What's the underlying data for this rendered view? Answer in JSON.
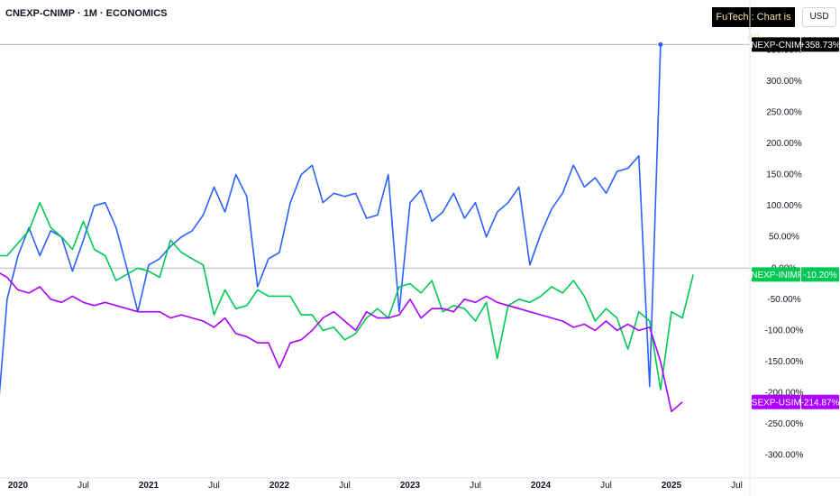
{
  "header": {
    "title": "CNEXP-CNIMP · 1M · ECONOMICS",
    "brand": "FuTech : Chart is Art",
    "currency": "USD"
  },
  "chart_data": {
    "type": "line",
    "y_unit": "%",
    "ylim": [
      -315,
      365
    ],
    "y_ticks": [
      "350.00%",
      "300.00%",
      "250.00%",
      "200.00%",
      "150.00%",
      "100.00%",
      "50.00%",
      "0.00%",
      "-50.00%",
      "-100.00%",
      "-150.00%",
      "-200.00%",
      "-250.00%",
      "-300.00%"
    ],
    "y_tick_values": [
      350,
      300,
      250,
      200,
      150,
      100,
      50,
      0,
      -50,
      -100,
      -150,
      -200,
      -250,
      -300
    ],
    "x_ticks": [
      "2020",
      "Jul",
      "2021",
      "Jul",
      "2022",
      "Jul",
      "2023",
      "Jul",
      "2024",
      "Jul",
      "2025",
      "Jul"
    ],
    "x_tick_dates": [
      "2020-01",
      "2020-07",
      "2021-01",
      "2021-07",
      "2022-01",
      "2022-07",
      "2023-01",
      "2023-07",
      "2024-01",
      "2024-07",
      "2025-01",
      "2025-07"
    ],
    "x_start": "2019-08",
    "grid": false,
    "series": [
      {
        "name": "CNEXP-CNIMP",
        "color": "#2962ff",
        "last_label": "+358.73%",
        "label_bg": "#000000",
        "values": [
          10,
          30,
          45,
          -265,
          -50,
          20,
          65,
          20,
          60,
          50,
          -5,
          45,
          100,
          105,
          65,
          0,
          -70,
          5,
          15,
          35,
          50,
          60,
          85,
          130,
          90,
          150,
          115,
          -30,
          15,
          25,
          105,
          150,
          165,
          105,
          120,
          115,
          120,
          80,
          85,
          150,
          -70,
          105,
          125,
          75,
          90,
          120,
          80,
          105,
          50,
          90,
          105,
          130,
          5,
          55,
          95,
          120,
          165,
          130,
          145,
          120,
          155,
          160,
          180,
          -190,
          358.73
        ]
      },
      {
        "name": "INEXP-INIMP",
        "color": "#00c853",
        "last_label": "-10.20%",
        "label_bg": "#00c853",
        "values": [
          0,
          0,
          -20,
          20,
          20,
          40,
          60,
          105,
          65,
          50,
          30,
          75,
          30,
          20,
          -20,
          -10,
          0,
          -5,
          -15,
          45,
          25,
          15,
          5,
          -75,
          -35,
          -65,
          -60,
          -35,
          -45,
          -45,
          -45,
          -75,
          -75,
          -100,
          -95,
          -115,
          -105,
          -80,
          -65,
          -80,
          -30,
          -25,
          -40,
          -20,
          -70,
          -60,
          -65,
          -85,
          -55,
          -145,
          -60,
          -50,
          -55,
          -45,
          -30,
          -40,
          -20,
          -45,
          -85,
          -65,
          -80,
          -130,
          -70,
          -85,
          -195,
          -70,
          -80,
          -10.2
        ]
      },
      {
        "name": "USEXP-USIMP",
        "color": "#aa00ff",
        "last_label": "-214.87%",
        "label_bg": "#aa00ff",
        "values": [
          -15,
          -15,
          -15,
          -5,
          -15,
          -35,
          -40,
          -30,
          -50,
          -55,
          -45,
          -55,
          -60,
          -55,
          -60,
          -65,
          -70,
          -70,
          -70,
          -80,
          -75,
          -80,
          -85,
          -95,
          -80,
          -105,
          -110,
          -120,
          -120,
          -160,
          -120,
          -115,
          -100,
          -80,
          -70,
          -85,
          -100,
          -70,
          -80,
          -80,
          -75,
          -50,
          -80,
          -65,
          -65,
          -70,
          -50,
          -55,
          -45,
          -55,
          -60,
          -65,
          -70,
          -75,
          -80,
          -85,
          -95,
          -90,
          -100,
          -85,
          -100,
          -90,
          -100,
          -95,
          -150,
          -230,
          -214.87
        ]
      }
    ]
  }
}
